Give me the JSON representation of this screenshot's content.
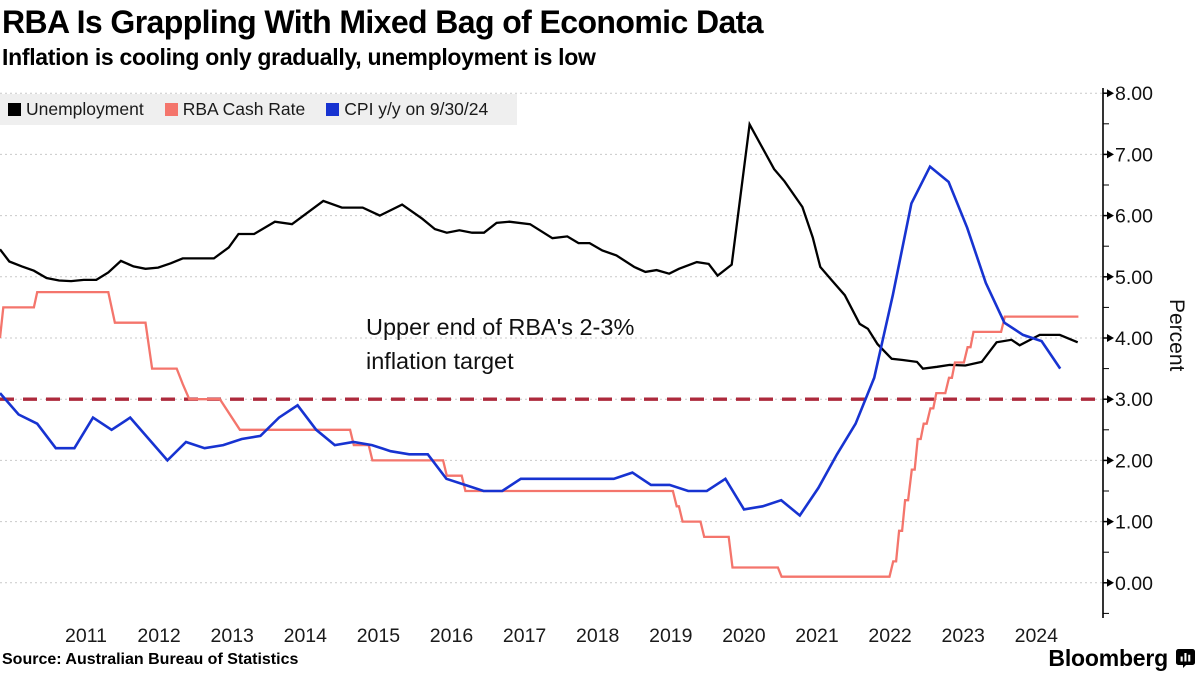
{
  "page": {
    "title": "RBA Is Grappling With Mixed Bag of Economic Data",
    "subtitle": "Inflation is cooling only gradually, unemployment is low",
    "source": "Source: Australian Bureau of Statistics",
    "brand": "Bloomberg"
  },
  "chart_data": {
    "type": "line",
    "title": "RBA Is Grappling With Mixed Bag of Economic Data",
    "subtitle": "Inflation is cooling only gradually, unemployment is low",
    "ylabel": "Percent",
    "y_axis": {
      "side": "right",
      "min": 0,
      "max": 8,
      "major_step": 1,
      "minor_step": 0.5,
      "labels": [
        "8.00",
        "7.00",
        "6.00",
        "5.00",
        "4.00",
        "3.00",
        "2.00",
        "1.00",
        "0.00"
      ]
    },
    "x_axis": {
      "year_labels": [
        "2011",
        "2012",
        "2013",
        "2014",
        "2015",
        "2016",
        "2017",
        "2018",
        "2019",
        "2020",
        "2021",
        "2022",
        "2023",
        "2024"
      ]
    },
    "grid": "horizontal-dashed",
    "time_range": [
      2010.375,
      2025.0
    ],
    "target_line": {
      "value": 3.0,
      "color": "#ad2a3c",
      "style": "dashed"
    },
    "annotation": {
      "lines": [
        "Upper end of RBA's 2-3%",
        "inflation target"
      ]
    },
    "legend": {
      "position": "top-left",
      "items": [
        {
          "label": "Unemployment",
          "color": "#000000"
        },
        {
          "label": "RBA Cash Rate",
          "color": "#f4756c"
        },
        {
          "label": "CPI y/y on 9/30/24",
          "color": "#1733d1"
        }
      ]
    },
    "series": [
      {
        "name": "Unemployment",
        "color": "#000000",
        "unit": "percent",
        "points": [
          [
            2010.375,
            5.45
          ],
          [
            2010.5,
            5.25
          ],
          [
            2010.67,
            5.17
          ],
          [
            2010.83,
            5.1
          ],
          [
            2011.0,
            4.98
          ],
          [
            2011.17,
            4.94
          ],
          [
            2011.33,
            4.93
          ],
          [
            2011.5,
            4.95
          ],
          [
            2011.67,
            4.95
          ],
          [
            2011.83,
            5.07
          ],
          [
            2012.0,
            5.26
          ],
          [
            2012.17,
            5.17
          ],
          [
            2012.33,
            5.13
          ],
          [
            2012.5,
            5.15
          ],
          [
            2012.67,
            5.22
          ],
          [
            2012.83,
            5.3
          ],
          [
            2013.08,
            5.3
          ],
          [
            2013.25,
            5.3
          ],
          [
            2013.45,
            5.48
          ],
          [
            2013.58,
            5.7
          ],
          [
            2013.79,
            5.7
          ],
          [
            2014.07,
            5.9
          ],
          [
            2014.3,
            5.86
          ],
          [
            2014.72,
            6.24
          ],
          [
            2014.97,
            6.13
          ],
          [
            2015.25,
            6.13
          ],
          [
            2015.48,
            6.0
          ],
          [
            2015.78,
            6.18
          ],
          [
            2016.05,
            5.95
          ],
          [
            2016.22,
            5.78
          ],
          [
            2016.38,
            5.72
          ],
          [
            2016.55,
            5.76
          ],
          [
            2016.72,
            5.72
          ],
          [
            2016.88,
            5.72
          ],
          [
            2017.05,
            5.88
          ],
          [
            2017.22,
            5.9
          ],
          [
            2017.5,
            5.86
          ],
          [
            2017.8,
            5.63
          ],
          [
            2018.0,
            5.66
          ],
          [
            2018.15,
            5.55
          ],
          [
            2018.3,
            5.55
          ],
          [
            2018.47,
            5.43
          ],
          [
            2018.66,
            5.35
          ],
          [
            2018.9,
            5.16
          ],
          [
            2019.05,
            5.08
          ],
          [
            2019.2,
            5.11
          ],
          [
            2019.37,
            5.05
          ],
          [
            2019.5,
            5.13
          ],
          [
            2019.74,
            5.24
          ],
          [
            2019.9,
            5.21
          ],
          [
            2020.02,
            5.02
          ],
          [
            2020.21,
            5.2
          ],
          [
            2020.45,
            7.49
          ],
          [
            2020.78,
            6.76
          ],
          [
            2020.92,
            6.56
          ],
          [
            2021.16,
            6.14
          ],
          [
            2021.3,
            5.64
          ],
          [
            2021.4,
            5.16
          ],
          [
            2021.55,
            4.95
          ],
          [
            2021.73,
            4.7
          ],
          [
            2021.93,
            4.23
          ],
          [
            2022.04,
            4.15
          ],
          [
            2022.17,
            3.9
          ],
          [
            2022.36,
            3.66
          ],
          [
            2022.51,
            3.64
          ],
          [
            2022.7,
            3.61
          ],
          [
            2022.78,
            3.5
          ],
          [
            2022.97,
            3.53
          ],
          [
            2023.14,
            3.56
          ],
          [
            2023.35,
            3.55
          ],
          [
            2023.57,
            3.61
          ],
          [
            2023.77,
            3.93
          ],
          [
            2023.97,
            3.97
          ],
          [
            2024.08,
            3.88
          ],
          [
            2024.35,
            4.05
          ],
          [
            2024.62,
            4.05
          ],
          [
            2024.86,
            3.93
          ]
        ]
      },
      {
        "name": "RBA Cash Rate",
        "color": "#f4756c",
        "unit": "percent",
        "points": [
          [
            2010.375,
            4.0
          ],
          [
            2010.42,
            4.5
          ],
          [
            2010.83,
            4.5
          ],
          [
            2010.875,
            4.75
          ],
          [
            2011.83,
            4.75
          ],
          [
            2011.92,
            4.25
          ],
          [
            2012.33,
            4.25
          ],
          [
            2012.42,
            3.5
          ],
          [
            2012.75,
            3.5
          ],
          [
            2012.83,
            3.25
          ],
          [
            2012.92,
            3.0
          ],
          [
            2013.33,
            3.0
          ],
          [
            2013.6,
            2.5
          ],
          [
            2015.08,
            2.5
          ],
          [
            2015.13,
            2.25
          ],
          [
            2015.33,
            2.25
          ],
          [
            2015.38,
            2.0
          ],
          [
            2016.33,
            2.0
          ],
          [
            2016.38,
            1.75
          ],
          [
            2016.58,
            1.75
          ],
          [
            2016.63,
            1.5
          ],
          [
            2019.42,
            1.5
          ],
          [
            2019.47,
            1.25
          ],
          [
            2019.5,
            1.25
          ],
          [
            2019.55,
            1.0
          ],
          [
            2019.79,
            1.0
          ],
          [
            2019.84,
            0.75
          ],
          [
            2020.17,
            0.75
          ],
          [
            2020.22,
            0.25
          ],
          [
            2020.83,
            0.25
          ],
          [
            2020.88,
            0.1
          ],
          [
            2022.33,
            0.1
          ],
          [
            2022.38,
            0.35
          ],
          [
            2022.42,
            0.35
          ],
          [
            2022.46,
            0.85
          ],
          [
            2022.5,
            0.85
          ],
          [
            2022.54,
            1.35
          ],
          [
            2022.58,
            1.35
          ],
          [
            2022.63,
            1.85
          ],
          [
            2022.67,
            1.85
          ],
          [
            2022.71,
            2.35
          ],
          [
            2022.75,
            2.35
          ],
          [
            2022.79,
            2.6
          ],
          [
            2022.83,
            2.6
          ],
          [
            2022.88,
            2.85
          ],
          [
            2022.92,
            2.85
          ],
          [
            2022.96,
            3.1
          ],
          [
            2023.08,
            3.1
          ],
          [
            2023.13,
            3.35
          ],
          [
            2023.17,
            3.35
          ],
          [
            2023.21,
            3.6
          ],
          [
            2023.33,
            3.6
          ],
          [
            2023.38,
            3.85
          ],
          [
            2023.42,
            3.85
          ],
          [
            2023.46,
            4.1
          ],
          [
            2023.83,
            4.1
          ],
          [
            2023.88,
            4.35
          ],
          [
            2024.87,
            4.35
          ]
        ]
      },
      {
        "name": "CPI y/y on 9/30/24",
        "color": "#1733d1",
        "unit": "percent",
        "quarterly": {
          "start_year": 2010,
          "start_quarter": 2,
          "values": [
            3.1,
            2.75,
            2.6,
            2.2,
            2.2,
            2.7,
            2.5,
            2.7,
            2.35,
            2.0,
            2.3,
            2.2,
            2.25,
            2.35,
            2.4,
            2.7,
            2.9,
            2.5,
            2.25,
            2.3,
            2.25,
            2.15,
            2.1,
            2.1,
            1.7,
            1.6,
            1.5,
            1.5,
            1.7,
            1.7,
            1.7,
            1.7,
            1.7,
            1.7,
            1.8,
            1.6,
            1.6,
            1.5,
            1.5,
            1.7,
            1.2,
            1.25,
            1.35,
            1.1,
            1.55,
            2.1,
            2.6,
            3.35,
            4.7,
            6.2,
            6.8,
            6.55,
            5.8,
            4.9,
            4.25,
            4.05,
            3.95,
            3.5
          ]
        }
      }
    ]
  }
}
